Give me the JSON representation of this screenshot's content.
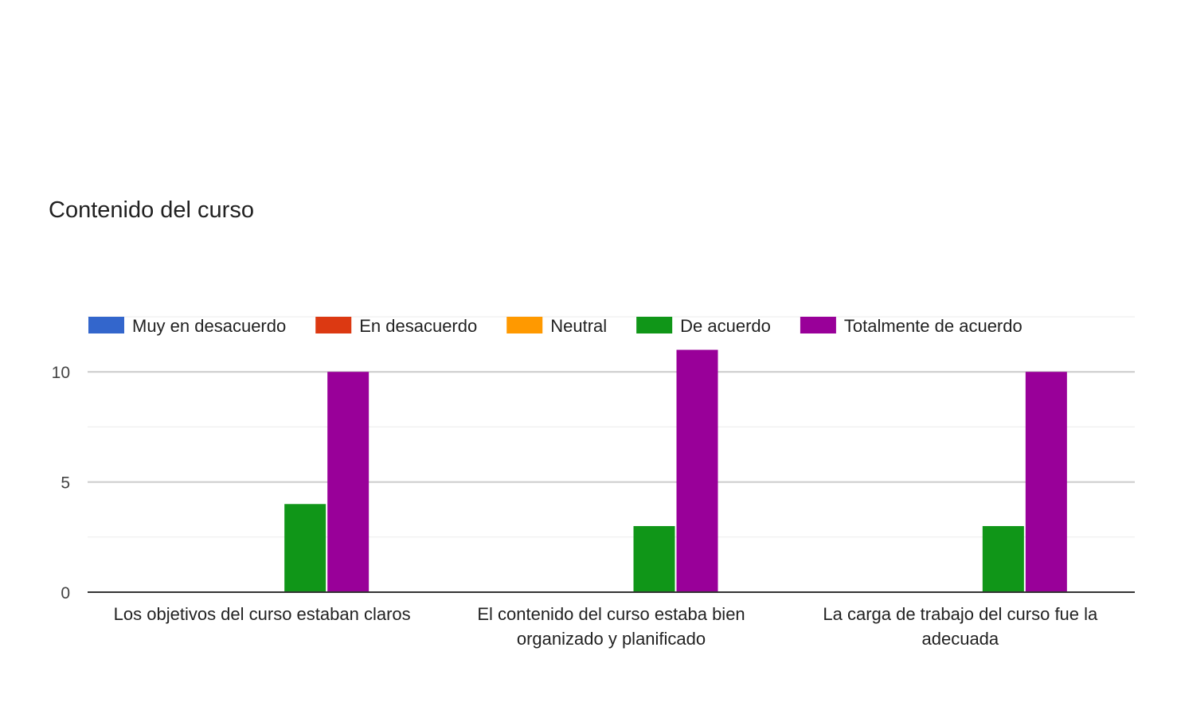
{
  "chart_data": {
    "type": "bar",
    "title": "Contenido del curso",
    "xlabel": "",
    "ylabel": "",
    "categories": [
      [
        "Los objetivos del curso estaban claros"
      ],
      [
        "El contenido del curso estaba bien",
        "organizado y planificado"
      ],
      [
        "La carga de trabajo del curso fue la",
        "adecuada"
      ]
    ],
    "series": [
      {
        "name": "Muy en desacuerdo",
        "color": "#3366cc",
        "values": [
          0,
          0,
          0
        ]
      },
      {
        "name": "En desacuerdo",
        "color": "#dc3912",
        "values": [
          0,
          0,
          0
        ]
      },
      {
        "name": "Neutral",
        "color": "#ff9900",
        "values": [
          0,
          0,
          0
        ]
      },
      {
        "name": "De acuerdo",
        "color": "#109618",
        "values": [
          4,
          3,
          3
        ]
      },
      {
        "name": "Totalmente de acuerdo",
        "color": "#990099",
        "values": [
          10,
          11,
          10
        ]
      }
    ],
    "ylim": [
      0,
      12.5
    ],
    "yticks": [
      0,
      5,
      10
    ],
    "grid": true,
    "legend_position": "top"
  }
}
